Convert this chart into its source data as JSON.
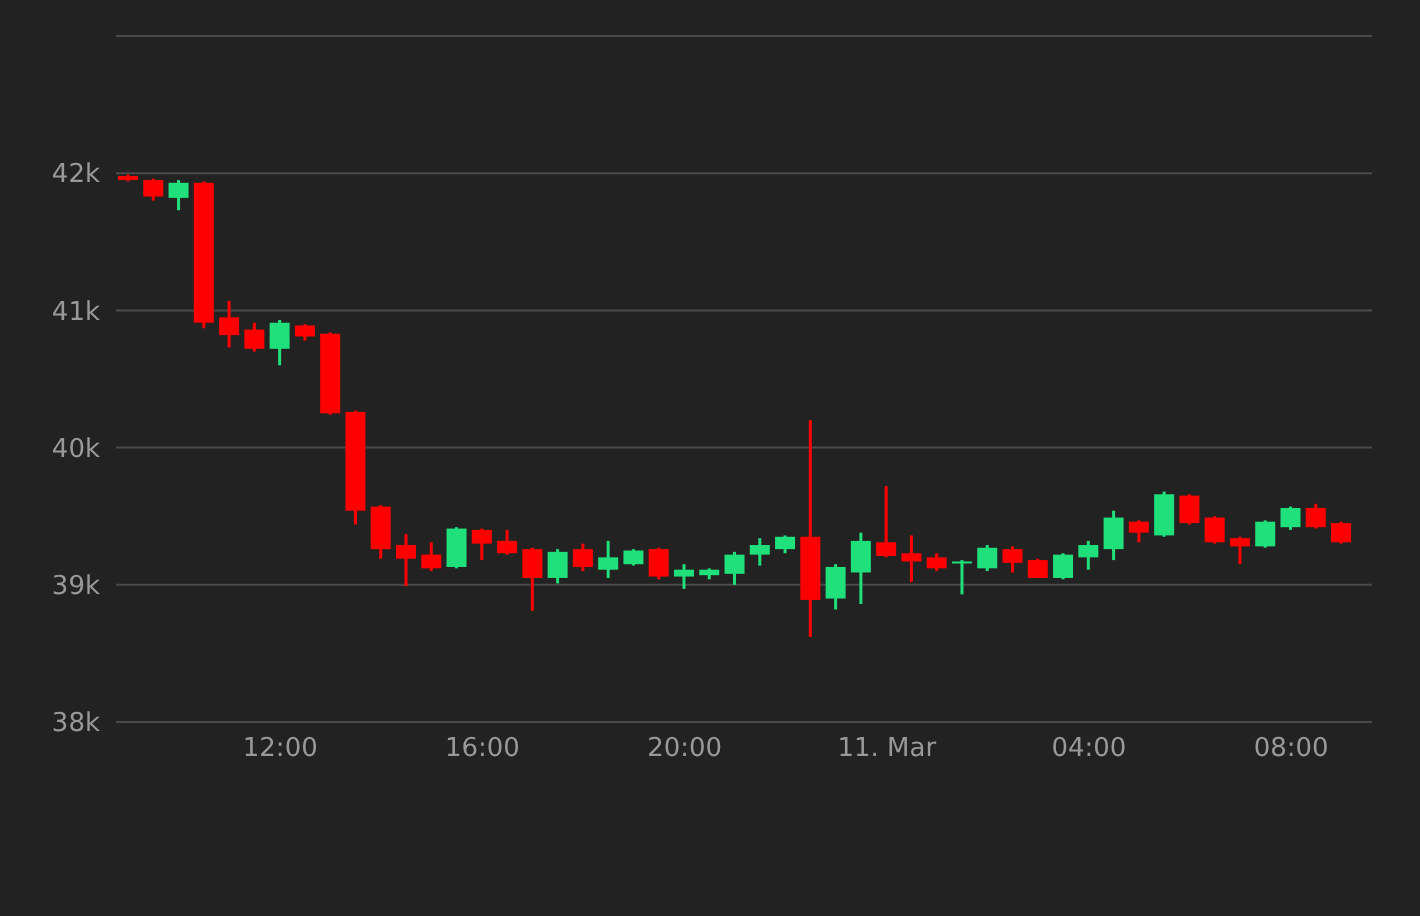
{
  "chart_data": {
    "type": "candlestick",
    "x": [
      "--03-10T09:00",
      "--03-10T09:30",
      "--03-10T10:00",
      "--03-10T10:30",
      "--03-10T11:00",
      "--03-10T11:30",
      "--03-10T12:00",
      "--03-10T12:30",
      "--03-10T13:00",
      "--03-10T13:30",
      "--03-10T14:00",
      "--03-10T14:30",
      "--03-10T15:00",
      "--03-10T15:30",
      "--03-10T16:00",
      "--03-10T16:30",
      "--03-10T17:00",
      "--03-10T17:30",
      "--03-10T18:00",
      "--03-10T18:30",
      "--03-10T19:00",
      "--03-10T19:30",
      "--03-10T20:00",
      "--03-10T20:30",
      "--03-10T21:00",
      "--03-10T21:30",
      "--03-10T22:00",
      "--03-10T22:30",
      "--03-10T23:00",
      "--03-10T23:30",
      "--03-11T00:00",
      "--03-11T00:30",
      "--03-11T01:00",
      "--03-11T01:30",
      "--03-11T02:00",
      "--03-11T02:30",
      "--03-11T03:00",
      "--03-11T03:30",
      "--03-11T04:00",
      "--03-11T04:30",
      "--03-11T05:00",
      "--03-11T05:30",
      "--03-11T06:00",
      "--03-11T06:30",
      "--03-11T07:00",
      "--03-11T07:30",
      "--03-11T08:00",
      "--03-11T08:30",
      "--03-11T09:00"
    ],
    "ohlc": [
      [
        41980,
        41990,
        41940,
        41950
      ],
      [
        41950,
        41960,
        41800,
        41830
      ],
      [
        41820,
        41950,
        41730,
        41930
      ],
      [
        41930,
        41940,
        40870,
        40910
      ],
      [
        40950,
        41070,
        40730,
        40820
      ],
      [
        40860,
        40910,
        40700,
        40720
      ],
      [
        40720,
        40930,
        40600,
        40910
      ],
      [
        40890,
        40900,
        40780,
        40810
      ],
      [
        40830,
        40840,
        40240,
        40250
      ],
      [
        40260,
        40270,
        39440,
        39540
      ],
      [
        39570,
        39580,
        39190,
        39260
      ],
      [
        39290,
        39370,
        38990,
        39190
      ],
      [
        39220,
        39310,
        39100,
        39120
      ],
      [
        39130,
        39420,
        39120,
        39410
      ],
      [
        39400,
        39410,
        39180,
        39300
      ],
      [
        39320,
        39400,
        39220,
        39230
      ],
      [
        39260,
        39270,
        38810,
        39050
      ],
      [
        39050,
        39260,
        39010,
        39240
      ],
      [
        39260,
        39300,
        39100,
        39130
      ],
      [
        39110,
        39320,
        39050,
        39200
      ],
      [
        39150,
        39260,
        39140,
        39250
      ],
      [
        39260,
        39270,
        39040,
        39060
      ],
      [
        39060,
        39150,
        38970,
        39110
      ],
      [
        39070,
        39120,
        39040,
        39110
      ],
      [
        39080,
        39240,
        39000,
        39220
      ],
      [
        39220,
        39340,
        39140,
        39290
      ],
      [
        39260,
        39360,
        39230,
        39350
      ],
      [
        39350,
        40200,
        38620,
        38890
      ],
      [
        38900,
        39150,
        38820,
        39130
      ],
      [
        39090,
        39380,
        38860,
        39320
      ],
      [
        39310,
        39720,
        39200,
        39210
      ],
      [
        39230,
        39360,
        39020,
        39170
      ],
      [
        39200,
        39230,
        39100,
        39120
      ],
      [
        39160,
        39180,
        38930,
        39170
      ],
      [
        39120,
        39290,
        39100,
        39270
      ],
      [
        39260,
        39280,
        39090,
        39160
      ],
      [
        39180,
        39190,
        39050,
        39050
      ],
      [
        39050,
        39230,
        39040,
        39220
      ],
      [
        39200,
        39320,
        39110,
        39290
      ],
      [
        39260,
        39540,
        39180,
        39490
      ],
      [
        39460,
        39470,
        39310,
        39380
      ],
      [
        39360,
        39680,
        39350,
        39660
      ],
      [
        39650,
        39660,
        39440,
        39450
      ],
      [
        39490,
        39500,
        39300,
        39310
      ],
      [
        39340,
        39350,
        39150,
        39280
      ],
      [
        39280,
        39470,
        39270,
        39460
      ],
      [
        39420,
        39570,
        39400,
        39560
      ],
      [
        39560,
        39590,
        39410,
        39420
      ],
      [
        39450,
        39460,
        39300,
        39310
      ]
    ],
    "colors": [
      "#ff0000",
      "#ff0000",
      "#1fe07a",
      "#ff0000",
      "#ff0000",
      "#ff0000",
      "#1fe07a",
      "#ff0000",
      "#ff0000",
      "#ff0000",
      "#ff0000",
      "#ff0000",
      "#ff0000",
      "#1fe07a",
      "#ff0000",
      "#ff0000",
      "#ff0000",
      "#1fe07a",
      "#ff0000",
      "#1fe07a",
      "#1fe07a",
      "#ff0000",
      "#1fe07a",
      "#1fe07a",
      "#1fe07a",
      "#1fe07a",
      "#1fe07a",
      "#ff0000",
      "#1fe07a",
      "#1fe07a",
      "#ff0000",
      "#ff0000",
      "#ff0000",
      "#1fe07a",
      "#1fe07a",
      "#ff0000",
      "#ff0000",
      "#1fe07a",
      "#1fe07a",
      "#1fe07a",
      "#ff0000",
      "#1fe07a",
      "#ff0000",
      "#ff0000",
      "#ff0000",
      "#1fe07a",
      "#1fe07a",
      "#ff0000",
      "#ff0000"
    ],
    "xlim": [
      "--03-10T08:45",
      "--03-11T09:36"
    ],
    "xticks": [
      {
        "value": "--03-10T12:00",
        "label": "12:00"
      },
      {
        "value": "--03-10T16:00",
        "label": "16:00"
      },
      {
        "value": "--03-10T20:00",
        "label": "20:00"
      },
      {
        "value": "--03-11T00:00",
        "label": "11. Mar"
      },
      {
        "value": "--03-11T04:00",
        "label": "04:00"
      },
      {
        "value": "--03-11T08:00",
        "label": "08:00"
      }
    ],
    "ylim": [
      38000,
      43000
    ],
    "yticks": [
      {
        "value": 38000,
        "label": "38k"
      },
      {
        "value": 39000,
        "label": "39k"
      },
      {
        "value": 40000,
        "label": "40k"
      },
      {
        "value": 41000,
        "label": "41k"
      },
      {
        "value": 42000,
        "label": "42k"
      },
      {
        "value": 43000,
        "label": null
      }
    ],
    "grid": "y"
  }
}
